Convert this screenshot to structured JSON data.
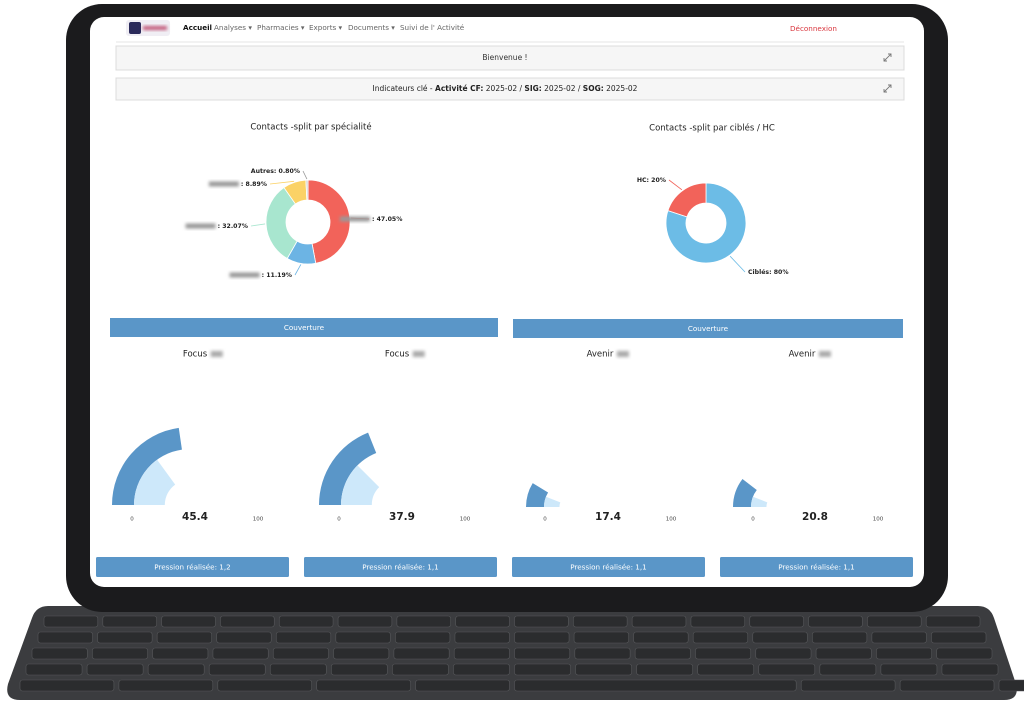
{
  "nav": {
    "items": [
      "Accueil",
      "Analyses ▾",
      "Pharmacies ▾",
      "Exports ▾",
      "Documents ▾",
      "Suivi de l' Activité"
    ],
    "logout": "Déconnexion"
  },
  "welcome": "Bienvenue !",
  "indicators": {
    "prefix": "Indicateurs clé - ",
    "parts": [
      {
        "bold": "Activité CF:",
        "text": " 2025-02 / "
      },
      {
        "bold": "SIG:",
        "text": " 2025-02 / "
      },
      {
        "bold": "SOG:",
        "text": " 2025-02"
      }
    ]
  },
  "chart_data": [
    {
      "type": "pie",
      "title": "Contacts -split par spécialité",
      "categories": [
        null,
        null,
        null,
        null,
        "Autres"
      ],
      "values": [
        47.05,
        11.19,
        32.07,
        8.89,
        0.8
      ],
      "value_labels": [
        ": 47.05%",
        ": 11.19%",
        ": 32.07%",
        ": 8.89%",
        ": 0.80%"
      ],
      "colors": [
        "#f2635a",
        "#6cb4e4",
        "#a8e6cf",
        "#fbd266",
        "#cfcfcf"
      ]
    },
    {
      "type": "pie",
      "title": "Contacts -split par ciblés / HC",
      "categories": [
        "Ciblés",
        "HC"
      ],
      "values": [
        80,
        20
      ],
      "value_labels": [
        ": 80%",
        ": 20%"
      ],
      "colors": [
        "#6cbce6",
        "#f2635a"
      ]
    },
    {
      "type": "gauge",
      "title": "Focus",
      "value": 45.4,
      "inner_value": 30,
      "ylim": [
        0,
        100
      ],
      "yticks": [
        0,
        100
      ],
      "color": "#5a96c8",
      "inner_color": "#cde8fa"
    },
    {
      "type": "gauge",
      "title": "Focus",
      "value": 37.9,
      "inner_value": 25,
      "ylim": [
        0,
        100
      ],
      "yticks": [
        0,
        100
      ],
      "color": "#5a96c8",
      "inner_color": "#cde8fa"
    },
    {
      "type": "gauge",
      "title": "Avenir",
      "value": 17.4,
      "inner_value": 12,
      "ylim": [
        0,
        100
      ],
      "yticks": [
        0,
        100
      ],
      "color": "#5a96c8",
      "inner_color": "#cde8fa"
    },
    {
      "type": "gauge",
      "title": "Avenir",
      "value": 20.8,
      "inner_value": 12,
      "ylim": [
        0,
        100
      ],
      "yticks": [
        0,
        100
      ],
      "color": "#5a96c8",
      "inner_color": "#cde8fa"
    }
  ],
  "sections": [
    "Couverture",
    "Couverture"
  ],
  "pressure": [
    "Pression réalisée: 1,2",
    "Pression réalisée: 1,1",
    "Pression réalisée: 1,1",
    "Pression réalisée: 1,1"
  ]
}
